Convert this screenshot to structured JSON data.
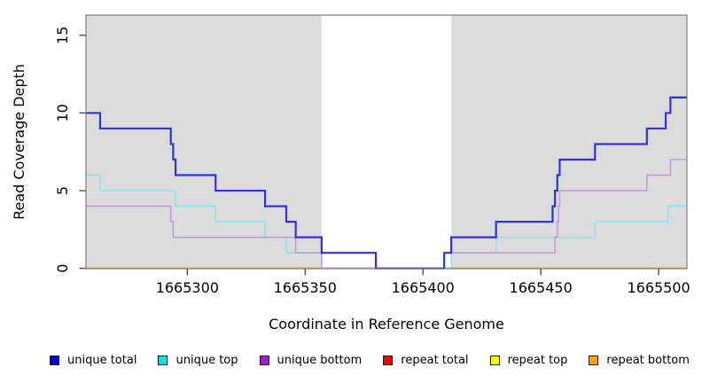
{
  "figure": {
    "background": "#FFFFFF",
    "plot_background": "#DCDCDC",
    "axis_line_color": "#808080",
    "tick_color": "#333333",
    "text_color": "#000000"
  },
  "chart_data": {
    "type": "line",
    "subtype": "step-after-coverage",
    "title": "",
    "xlabel": "Coordinate in Reference Genome",
    "ylabel": "Read Coverage Depth",
    "xlim": [
      1665257,
      1665512
    ],
    "ylim": [
      0,
      16.3
    ],
    "x_ticks": [
      1665300,
      1665350,
      1665400,
      1665450,
      1665500
    ],
    "y_ticks": [
      0,
      5,
      10,
      15
    ],
    "grid": "off",
    "legend_position": "bottom",
    "repeat_region_band": {
      "from": 1665357,
      "to": 1665412,
      "color": "#FFFFFF"
    },
    "draw_order": [
      "repeat top",
      "repeat total",
      "repeat bottom",
      "unique top",
      "unique bottom",
      "unique total"
    ],
    "series": [
      {
        "name": "unique total",
        "line_color": "#3232DA",
        "swatch_color": "#0000F0",
        "line_width": 2.2,
        "points": [
          [
            1665257,
            10
          ],
          [
            1665263,
            9
          ],
          [
            1665293,
            8
          ],
          [
            1665294,
            7
          ],
          [
            1665295,
            6
          ],
          [
            1665312,
            5
          ],
          [
            1665333,
            4
          ],
          [
            1665342,
            3
          ],
          [
            1665346,
            2
          ],
          [
            1665357,
            1
          ],
          [
            1665380,
            0
          ],
          [
            1665409,
            1
          ],
          [
            1665412,
            2
          ],
          [
            1665431,
            3
          ],
          [
            1665455,
            4
          ],
          [
            1665456,
            5
          ],
          [
            1665457,
            6
          ],
          [
            1665458,
            7
          ],
          [
            1665473,
            8
          ],
          [
            1665495,
            9
          ],
          [
            1665503,
            10
          ],
          [
            1665505,
            11
          ],
          [
            1665512,
            11
          ]
        ]
      },
      {
        "name": "unique top",
        "line_color": "#8AE6EE",
        "swatch_color": "#00E5EE",
        "line_width": 1.6,
        "points": [
          [
            1665257,
            6
          ],
          [
            1665263,
            5
          ],
          [
            1665295,
            4
          ],
          [
            1665312,
            3
          ],
          [
            1665333,
            2
          ],
          [
            1665342,
            1
          ],
          [
            1665357,
            0
          ],
          [
            1665412,
            1
          ],
          [
            1665431,
            2
          ],
          [
            1665473,
            3
          ],
          [
            1665504,
            4
          ],
          [
            1665512,
            4
          ]
        ]
      },
      {
        "name": "unique bottom",
        "line_color": "#C39BDF",
        "swatch_color": "#A020CE",
        "line_width": 1.6,
        "points": [
          [
            1665257,
            4
          ],
          [
            1665293,
            3
          ],
          [
            1665294,
            2
          ],
          [
            1665346,
            1
          ],
          [
            1665357,
            0
          ],
          [
            1665409,
            1
          ],
          [
            1665456,
            2
          ],
          [
            1665457,
            3
          ],
          [
            1665457.5,
            4
          ],
          [
            1665458,
            5
          ],
          [
            1665495,
            6
          ],
          [
            1665505,
            7
          ],
          [
            1665512,
            7
          ]
        ]
      },
      {
        "name": "repeat total",
        "line_color": "#DD5577",
        "swatch_color": "#FA0000",
        "line_width": 1.6,
        "points": [
          [
            1665257,
            0
          ],
          [
            1665512,
            0
          ]
        ]
      },
      {
        "name": "repeat top",
        "line_color": "#FFFF00",
        "swatch_color": "#FFFF00",
        "line_width": 1.6,
        "points": [
          [
            1665257,
            0
          ],
          [
            1665512,
            0
          ]
        ]
      },
      {
        "name": "repeat bottom",
        "line_color": "#FFA018",
        "swatch_color": "#FFA000",
        "line_width": 1.8,
        "points": [
          [
            1665257,
            0
          ],
          [
            1665512,
            0
          ]
        ]
      }
    ]
  }
}
